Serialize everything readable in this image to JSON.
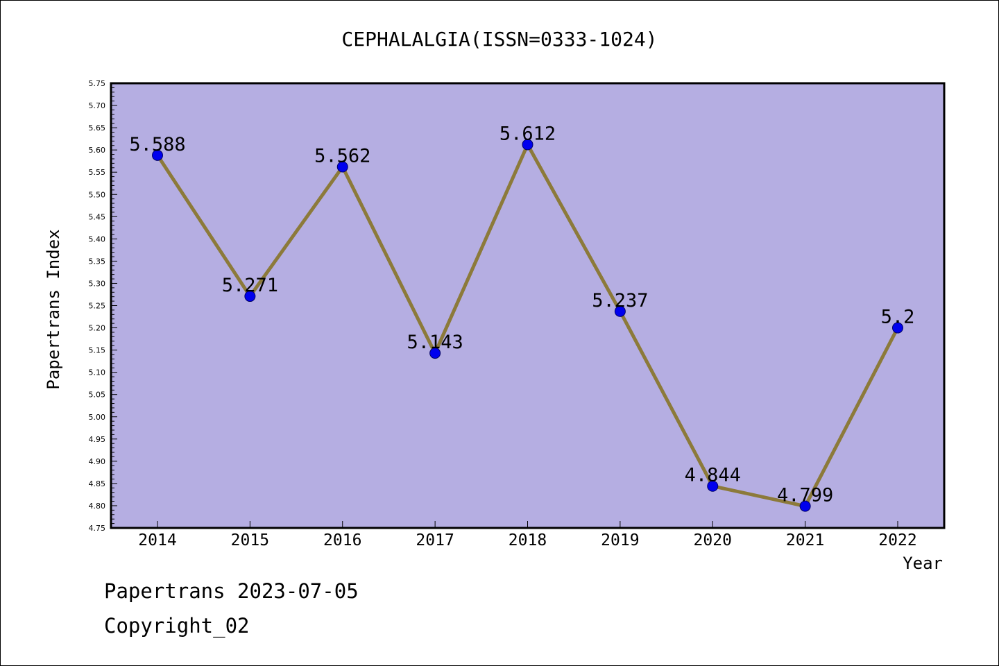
{
  "chart_data": {
    "type": "line",
    "title": "CEPHALALGIA(ISSN=0333-1024)",
    "xlabel": "Year",
    "ylabel": "Papertrans Index",
    "x": [
      "2014",
      "2015",
      "2016",
      "2017",
      "2018",
      "2019",
      "2020",
      "2021",
      "2022"
    ],
    "values": [
      5.588,
      5.271,
      5.562,
      5.143,
      5.612,
      5.237,
      4.844,
      4.799,
      5.2
    ],
    "value_labels": [
      "5.588",
      "5.271",
      "5.562",
      "5.143",
      "5.612",
      "5.237",
      "4.844",
      "4.799",
      "5.2"
    ],
    "ylim": [
      4.75,
      5.75
    ],
    "yticks": [
      "4.75",
      "4.80",
      "4.85",
      "4.90",
      "4.95",
      "5.00",
      "5.05",
      "5.10",
      "5.15",
      "5.20",
      "5.25",
      "5.30",
      "5.35",
      "5.40",
      "5.45",
      "5.50",
      "5.55",
      "5.60",
      "5.65",
      "5.70",
      "5.75"
    ],
    "grid": false,
    "colors": {
      "plot_background": "#b5aee2",
      "line": "#8c7a3a",
      "marker": "#0000ee",
      "marker_edge": "#000066"
    }
  },
  "footer": {
    "date_line": "Papertrans 2023-07-05",
    "copyright_line": "Copyright_02"
  }
}
